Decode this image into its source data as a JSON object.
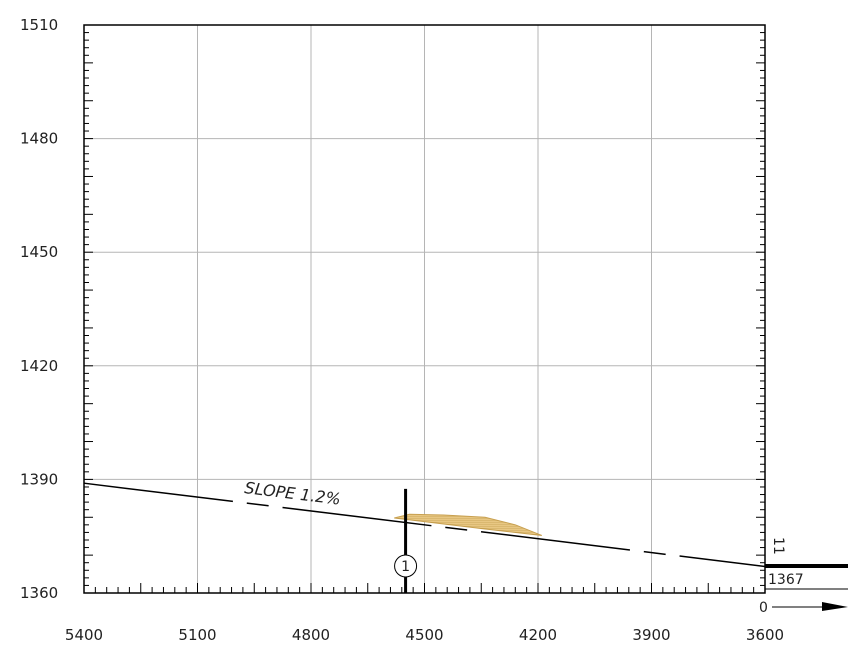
{
  "chart_data": {
    "type": "profile",
    "x_ticks": [
      "5400",
      "5100",
      "4800",
      "4500",
      "4200",
      "3900",
      "3600"
    ],
    "y_ticks": [
      "1510",
      "1480",
      "1450",
      "1420",
      "1390",
      "1360"
    ],
    "xlim": [
      5400,
      3600
    ],
    "ylim": [
      1360,
      1510
    ],
    "grid": true,
    "slope_label": "SLOPE 1.2%",
    "ground_line": [
      [
        5400,
        1389
      ],
      [
        3600,
        1367
      ]
    ],
    "fill_color": "#e8c884",
    "fill_polygon": [
      [
        4580,
        1379.8
      ],
      [
        4540,
        1380.8
      ],
      [
        4450,
        1380.6
      ],
      [
        4340,
        1380.0
      ],
      [
        4260,
        1378.0
      ],
      [
        4190,
        1375.2
      ],
      [
        4340,
        1376.9
      ],
      [
        4580,
        1379.8
      ]
    ],
    "marker": {
      "label": "1",
      "x": 4550
    }
  },
  "right_panel": {
    "elevation": "1367",
    "side_label": "11",
    "arrow_label": "0"
  }
}
